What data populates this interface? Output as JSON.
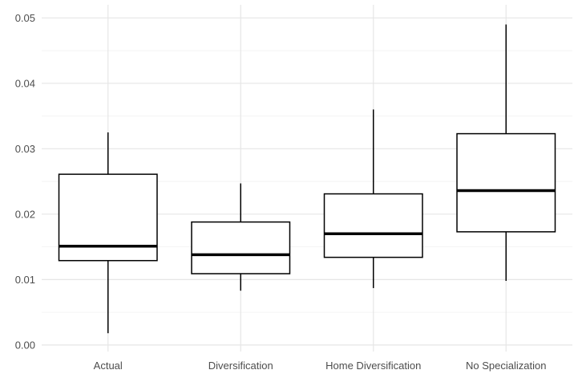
{
  "chart_data": {
    "type": "boxplot",
    "title": "",
    "xlabel": "",
    "ylabel": "",
    "categories": [
      "Actual",
      "Diversification",
      "Home Diversification",
      "No Specialization"
    ],
    "boxes": [
      {
        "category": "Actual",
        "min": 0.0018,
        "q1": 0.0129,
        "median": 0.0151,
        "q3": 0.0261,
        "max": 0.0325
      },
      {
        "category": "Diversification",
        "min": 0.0083,
        "q1": 0.0109,
        "median": 0.0138,
        "q3": 0.0188,
        "max": 0.0247
      },
      {
        "category": "Home Diversification",
        "min": 0.0087,
        "q1": 0.0134,
        "median": 0.017,
        "q3": 0.0231,
        "max": 0.036
      },
      {
        "category": "No Specialization",
        "min": 0.0098,
        "q1": 0.0173,
        "median": 0.0236,
        "q3": 0.0323,
        "max": 0.049
      }
    ],
    "ylim": [
      -0.001,
      0.052
    ],
    "yticks": [
      0.0,
      0.01,
      0.02,
      0.03,
      0.04,
      0.05
    ],
    "ytick_labels": [
      "0.00",
      "0.01",
      "0.02",
      "0.03",
      "0.04",
      "0.05"
    ],
    "grid": true,
    "legend": "none"
  }
}
